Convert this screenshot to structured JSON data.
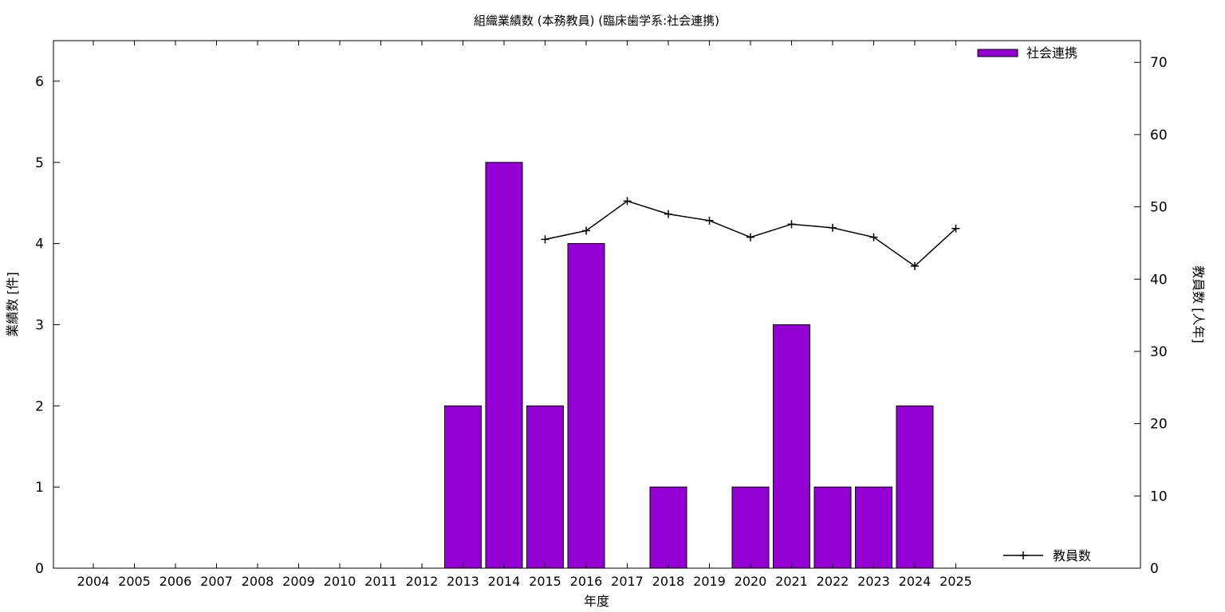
{
  "chart_data": {
    "type": "bar",
    "title": "組織業績数 (本務教員) (臨床歯学系:社会連携)",
    "xlabel": "年度",
    "ylabel": "業績数 [件]",
    "y2label": "教員数 [人年]",
    "categories": [
      "2004",
      "2005",
      "2006",
      "2007",
      "2008",
      "2009",
      "2010",
      "2011",
      "2012",
      "2013",
      "2014",
      "2015",
      "2016",
      "2017",
      "2018",
      "2019",
      "2020",
      "2021",
      "2022",
      "2023",
      "2024",
      "2025"
    ],
    "ylim": [
      0,
      6.5
    ],
    "yticks": [
      0,
      1,
      2,
      3,
      4,
      5,
      6
    ],
    "y2lim": [
      0,
      73
    ],
    "y2ticks": [
      0,
      10,
      20,
      30,
      40,
      50,
      60,
      70
    ],
    "grid": false,
    "series": [
      {
        "name": "社会連携",
        "type": "bar",
        "axis": "left",
        "color": "#9400d3",
        "values": [
          0,
          0,
          0,
          0,
          0,
          0,
          0,
          0,
          0,
          2,
          5,
          2,
          4,
          0,
          1,
          0,
          1,
          3,
          1,
          1,
          2,
          0
        ]
      },
      {
        "name": "教員数",
        "type": "line",
        "axis": "right",
        "color": "#000000",
        "marker": "plus",
        "x": [
          "2015",
          "2016",
          "2017",
          "2018",
          "2019",
          "2020",
          "2021",
          "2022",
          "2023",
          "2024",
          "2025"
        ],
        "values": [
          45.5,
          46.7,
          50.8,
          49.0,
          48.1,
          45.8,
          47.6,
          47.1,
          45.8,
          41.8,
          47.0
        ]
      }
    ],
    "legend": [
      {
        "label": "社会連携",
        "position": "top-right"
      },
      {
        "label": "教員数",
        "position": "bottom-right"
      }
    ]
  }
}
